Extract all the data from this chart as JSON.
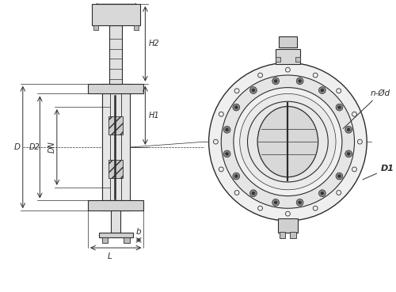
{
  "bg_color": "#ffffff",
  "line_color": "#2c2c2c",
  "figsize": [
    5.0,
    3.69
  ],
  "dpi": 100,
  "labels": {
    "D": "D",
    "D2": "D2",
    "DN": "DN",
    "H1": "H1",
    "H2": "H2",
    "L": "L",
    "b": "b",
    "D1": "D1",
    "nOd": "n-Ød"
  }
}
